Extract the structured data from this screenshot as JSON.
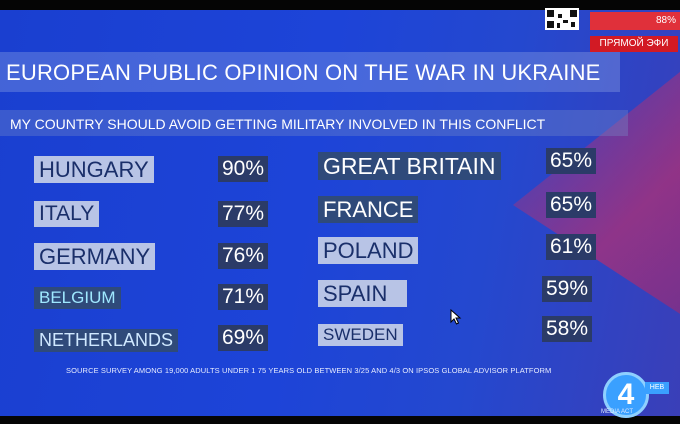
{
  "header": {
    "title": "EUROPEAN PUBLIC OPINION ON THE WAR IN UKRAINE",
    "subtitle": "MY COUNTRY SHOULD AVOID GETTING MILITARY INVOLVED IN THIS CONFLICT"
  },
  "left_column": [
    {
      "country": "HUNGARY",
      "value": "90%"
    },
    {
      "country": "ITALY",
      "value": "77%"
    },
    {
      "country": "GERMANY",
      "value": "76%"
    },
    {
      "country": "BELGIUM",
      "value": "71%"
    },
    {
      "country": "NETHERLANDS",
      "value": "69%"
    }
  ],
  "right_column": [
    {
      "country": "GREAT BRITAIN",
      "value": "65%"
    },
    {
      "country": "FRANCE",
      "value": "65%"
    },
    {
      "country": "POLAND",
      "value": "61%"
    },
    {
      "country": "SPAIN",
      "value": "59%"
    },
    {
      "country": "SWEDEN",
      "value": "58%"
    }
  ],
  "source": "SOURCE SURVEY AMONG 19,000 ADULTS UNDER 1 75 YEARS OLD BETWEEN 3/25 AND 4/3 ON IPSOS GLOBAL ADVISOR PLATFORM",
  "overlay": {
    "live_label": "ПРЯМОЙ ЭФИ",
    "live_percent": "88%",
    "logo": "4",
    "logo_tag": "НЕВ",
    "media": "MEDIA ACT"
  },
  "colors": {
    "background": "#1d44d8",
    "label_light": "#b8c4e6",
    "label_dark": "#2f4a7a",
    "accent_red": "#d21a24"
  }
}
